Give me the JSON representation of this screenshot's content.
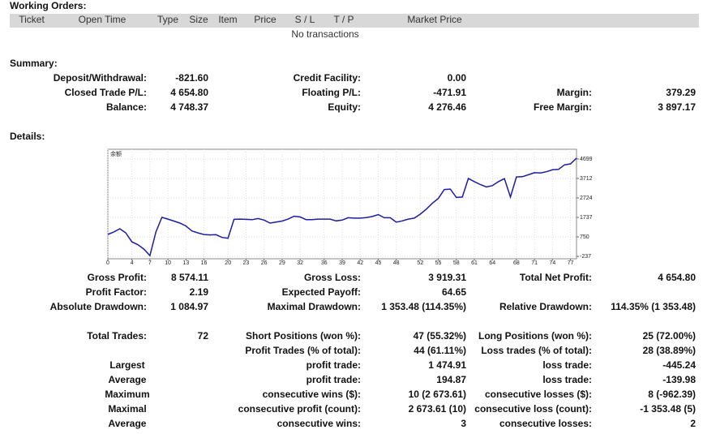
{
  "working_orders": {
    "title": "Working Orders:",
    "columns": [
      "Ticket",
      "Open Time",
      "Type",
      "Size",
      "Item",
      "Price",
      "S / L",
      "T / P",
      "Market Price"
    ],
    "empty": "No transactions"
  },
  "summary": {
    "title": "Summary:",
    "rows": [
      [
        [
          "Deposit/Withdrawal:",
          "-821.60"
        ],
        [
          "Credit Facility:",
          "0.00"
        ]
      ],
      [
        [
          "Closed Trade P/L:",
          "4 654.80"
        ],
        [
          "Floating P/L:",
          "-471.91"
        ],
        [
          "Margin:",
          "379.29"
        ]
      ],
      [
        [
          "Balance:",
          "4 748.37"
        ],
        [
          "Equity:",
          "4 276.46"
        ],
        [
          "Free Margin:",
          "3 897.17"
        ]
      ]
    ]
  },
  "details": {
    "title": "Details:",
    "stats": [
      [
        [
          "Gross Profit:",
          "8 574.11"
        ],
        [
          "Gross Loss:",
          "3 919.31"
        ],
        [
          "Total Net Profit:",
          "4 654.80"
        ]
      ],
      [
        [
          "Profit Factor:",
          "2.19"
        ],
        [
          "Expected Payoff:",
          "64.65"
        ]
      ],
      [
        [
          "Absolute Drawdown:",
          "1 084.97"
        ],
        [
          "Maximal Drawdown:",
          "1 353.48 (114.35%)"
        ],
        [
          "Relative Drawdown:",
          "114.35% (1 353.48)"
        ]
      ],
      [
        [
          "Total Trades:",
          "72"
        ],
        [
          "Short Positions (won %):",
          "47 (55.32%)"
        ],
        [
          "Long Positions (won %):",
          "25 (72.00%)"
        ]
      ]
    ],
    "breakdown": [
      {
        "pairs": [
          [
            "Profit Trades (% of total):",
            "44 (61.11%)"
          ],
          [
            "Loss trades (% of total):",
            "28 (38.89%)"
          ]
        ]
      },
      {
        "group": "Largest",
        "pairs": [
          [
            "profit trade:",
            "1 474.91"
          ],
          [
            "loss trade:",
            "-445.24"
          ]
        ]
      },
      {
        "group": "Average",
        "pairs": [
          [
            "profit trade:",
            "194.87"
          ],
          [
            "loss trade:",
            "-139.98"
          ]
        ]
      },
      {
        "group": "Maximum",
        "pairs": [
          [
            "consecutive wins ($):",
            "10 (2 673.61)"
          ],
          [
            "consecutive losses ($):",
            "8 (-962.39)"
          ]
        ]
      },
      {
        "group": "Maximal",
        "pairs": [
          [
            "consecutive profit (count):",
            "2 673.61 (10)"
          ],
          [
            "consecutive loss (count):",
            "-1 353.48 (5)"
          ]
        ]
      },
      {
        "group": "Average",
        "pairs": [
          [
            "consecutive wins:",
            "3"
          ],
          [
            "consecutive losses:",
            "2"
          ]
        ]
      }
    ]
  },
  "chart_data": {
    "type": "line",
    "x": [
      0,
      1,
      2,
      3,
      4,
      5,
      6,
      7,
      8,
      9,
      10,
      11,
      12,
      13,
      14,
      15,
      16,
      17,
      18,
      19,
      20,
      21,
      22,
      23,
      24,
      25,
      26,
      27,
      28,
      29,
      30,
      31,
      32,
      33,
      34,
      35,
      36,
      37,
      38,
      39,
      40,
      41,
      42,
      43,
      44,
      45,
      46,
      47,
      48,
      49,
      50,
      51,
      52,
      53,
      54,
      55,
      56,
      57,
      58,
      59,
      60,
      61,
      62,
      63,
      64,
      65,
      66,
      67,
      68,
      69,
      70,
      71,
      72,
      73,
      74,
      75,
      76,
      77,
      78
    ],
    "series": [
      {
        "name": "余额",
        "color": "#1c1ca6",
        "values": [
          875,
          1000,
          1160,
          950,
          500,
          350,
          130,
          -200,
          1000,
          1740,
          1650,
          1550,
          1450,
          1300,
          1050,
          950,
          870,
          850,
          860,
          720,
          680,
          1640,
          1650,
          1640,
          1620,
          1680,
          1600,
          1450,
          1500,
          1550,
          1650,
          1800,
          1760,
          1620,
          1620,
          1650,
          1650,
          1650,
          1560,
          1600,
          1720,
          1700,
          1700,
          1730,
          1780,
          1880,
          1720,
          1720,
          1500,
          1560,
          1650,
          1700,
          1900,
          2150,
          2450,
          2700,
          3150,
          3170,
          2750,
          2770,
          3710,
          3550,
          3400,
          3280,
          3350,
          3550,
          3700,
          2770,
          3790,
          3800,
          3900,
          4000,
          3990,
          4050,
          4150,
          4170,
          4400,
          4450,
          4740
        ]
      }
    ],
    "xlim": [
      0,
      78
    ],
    "xticks": [
      0,
      4,
      7,
      10,
      13,
      16,
      20,
      23,
      26,
      29,
      32,
      36,
      39,
      42,
      45,
      48,
      52,
      55,
      58,
      61,
      64,
      68,
      71,
      74,
      77
    ],
    "ylim": [
      -360,
      5190
    ],
    "yticks": [
      4699,
      3712,
      2724,
      1737,
      750,
      -237
    ],
    "grid": true
  }
}
